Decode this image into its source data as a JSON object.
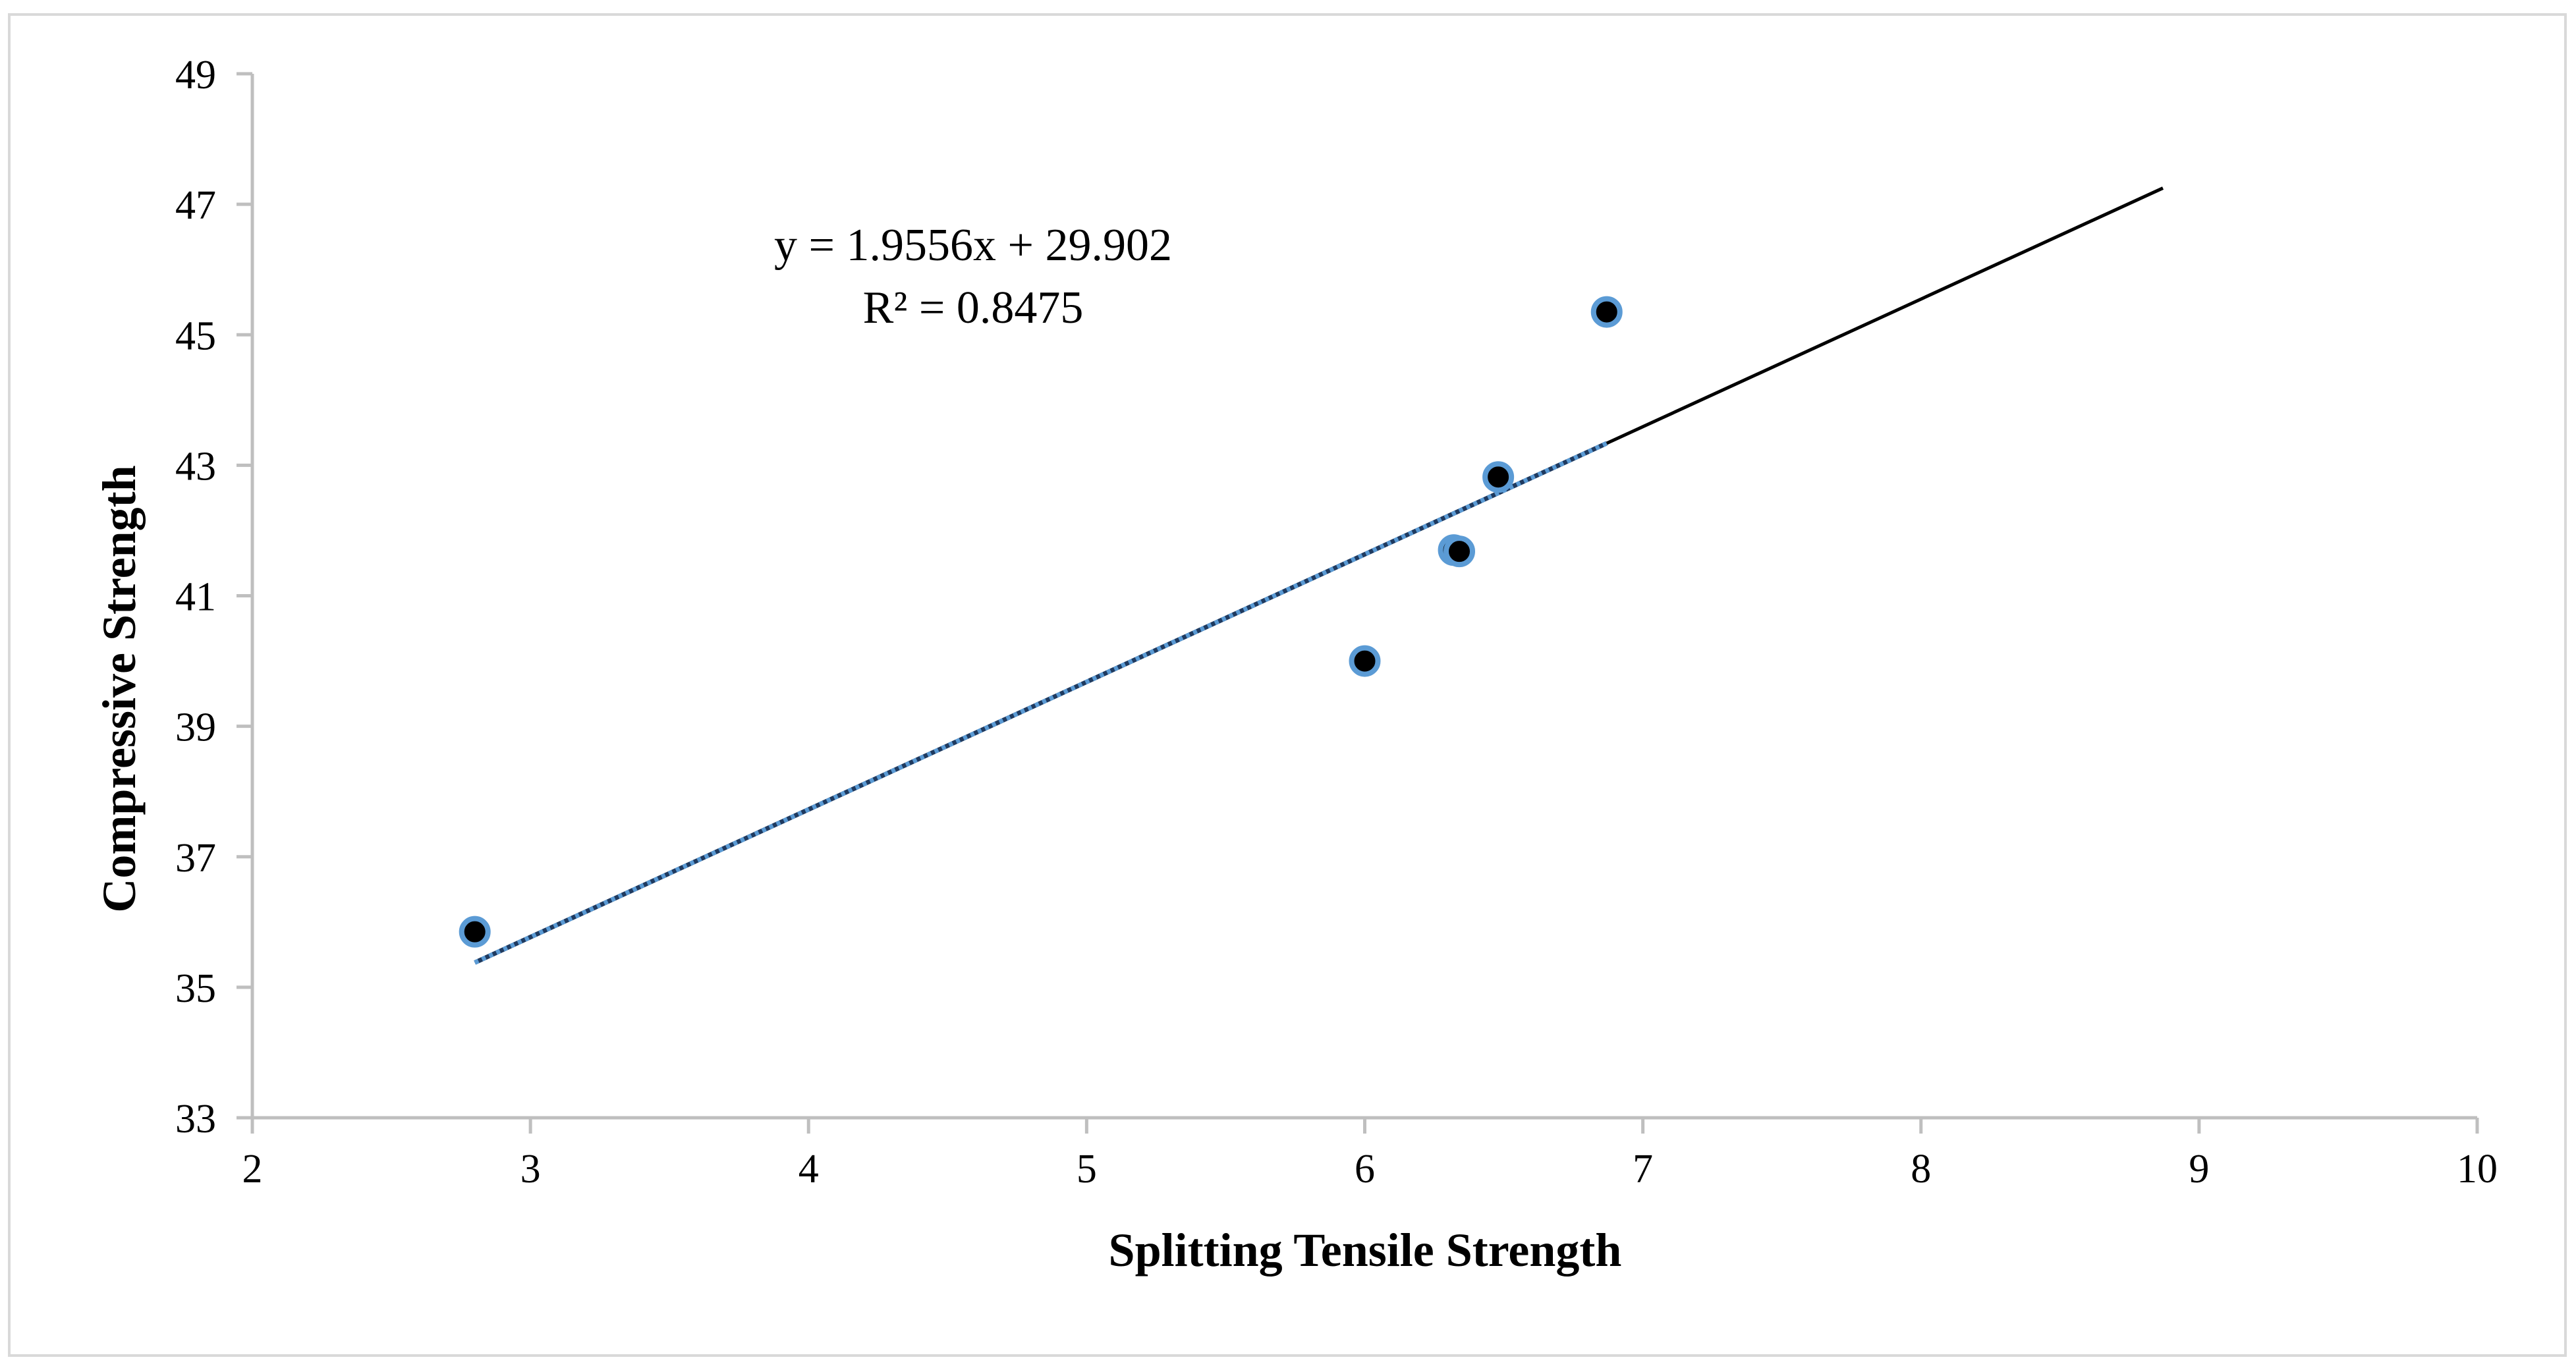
{
  "chart_data": {
    "type": "scatter",
    "title": "",
    "xlabel": "Splitting Tensile Strength",
    "ylabel": "Compressive Strength",
    "xlim": [
      2,
      10
    ],
    "ylim": [
      33,
      49
    ],
    "xticks": [
      2,
      3,
      4,
      5,
      6,
      7,
      8,
      9,
      10
    ],
    "yticks": [
      33,
      35,
      37,
      39,
      41,
      43,
      45,
      47,
      49
    ],
    "grid": false,
    "series": [
      {
        "name": "Data",
        "marker": "circle",
        "fill_color": "#000000",
        "edge_color": "#5b9bd5",
        "points": [
          {
            "x": 2.8,
            "y": 35.85
          },
          {
            "x": 6.0,
            "y": 40.0
          },
          {
            "x": 6.32,
            "y": 41.7
          },
          {
            "x": 6.34,
            "y": 41.68
          },
          {
            "x": 6.48,
            "y": 42.82
          },
          {
            "x": 6.87,
            "y": 45.35
          }
        ]
      }
    ],
    "trendline": {
      "slope": 1.9556,
      "intercept": 29.902,
      "fit_range": [
        2.8,
        6.87
      ],
      "forecast_to": 8.87,
      "fit_color": "#5b9bd5",
      "forecast_color": "#000000",
      "equation": "y = 1.9556x + 29.902",
      "r_squared": "R² = 0.8475"
    },
    "colors": {
      "axis": "#bfbfbf",
      "border": "#d9d9d9",
      "text": "#000000"
    }
  }
}
